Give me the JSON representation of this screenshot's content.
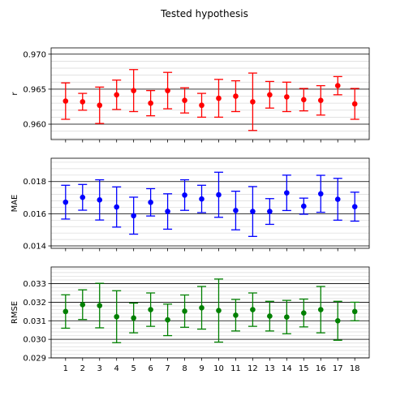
{
  "chart_data": {
    "title": "Tested hypothesis",
    "type": "scatter",
    "x_ticks": [
      1,
      2,
      3,
      4,
      5,
      6,
      7,
      8,
      9,
      10,
      11,
      12,
      13,
      14,
      15,
      16,
      17,
      18
    ],
    "shared_x": [
      1,
      2,
      3,
      4,
      5,
      6,
      7,
      8,
      9,
      10,
      11,
      12,
      13,
      14,
      15,
      16,
      17,
      18
    ],
    "xlim": [
      0.15,
      18.85
    ],
    "grid": true,
    "panels": [
      {
        "ylabel": "r",
        "color": "#ff0000",
        "ylim": [
          0.9578,
          0.9709
        ],
        "y_ticks": [
          "0.960",
          "0.965",
          "0.970"
        ],
        "y_tick_values": [
          0.96,
          0.965,
          0.97
        ],
        "minor_step": 0.001,
        "values": [
          0.9633,
          0.9632,
          0.9627,
          0.9642,
          0.9648,
          0.963,
          0.9648,
          0.9634,
          0.9627,
          0.9637,
          0.964,
          0.9632,
          0.9642,
          0.9639,
          0.9635,
          0.9634,
          0.9655,
          0.9629
        ],
        "errors": [
          0.0026,
          0.0012,
          0.0026,
          0.0021,
          0.003,
          0.0018,
          0.0026,
          0.0018,
          0.0017,
          0.0027,
          0.0022,
          0.0041,
          0.0019,
          0.0021,
          0.0016,
          0.0021,
          0.0013,
          0.0022
        ]
      },
      {
        "ylabel": "MAE",
        "color": "#0000ff",
        "ylim": [
          0.01385,
          0.01945
        ],
        "y_ticks": [
          "0.014",
          "0.016",
          "0.018"
        ],
        "y_tick_values": [
          0.014,
          0.016,
          0.018
        ],
        "minor_step": 0.0004,
        "values": [
          0.01672,
          0.01702,
          0.01686,
          0.01642,
          0.01588,
          0.01671,
          0.01614,
          0.01716,
          0.01692,
          0.01718,
          0.0162,
          0.01614,
          0.01614,
          0.0173,
          0.01647,
          0.01724,
          0.0169,
          0.01644
        ],
        "errors": [
          0.00105,
          0.0008,
          0.00125,
          0.00125,
          0.00115,
          0.00085,
          0.0011,
          0.00095,
          0.00085,
          0.0014,
          0.0012,
          0.00155,
          0.0008,
          0.0011,
          0.0005,
          0.00115,
          0.0013,
          0.0009
        ]
      },
      {
        "ylabel": "RMSE",
        "color": "#008000",
        "ylim": [
          0.029,
          0.0339
        ],
        "y_ticks": [
          "0.029",
          "0.030",
          "0.031",
          "0.032",
          "0.033"
        ],
        "y_tick_values": [
          0.029,
          0.03,
          0.031,
          0.032,
          0.033
        ],
        "minor_step": 0.0002,
        "values": [
          0.0315,
          0.03187,
          0.03182,
          0.03122,
          0.03115,
          0.0316,
          0.03105,
          0.03152,
          0.0317,
          0.03155,
          0.0313,
          0.0316,
          0.03125,
          0.0312,
          0.03142,
          0.0316,
          0.031,
          0.0315
        ],
        "errors": [
          0.0009,
          0.0008,
          0.0012,
          0.0014,
          0.0008,
          0.0009,
          0.00085,
          0.00087,
          0.00115,
          0.0017,
          0.00085,
          0.0009,
          0.0008,
          0.0009,
          0.00075,
          0.00125,
          0.00105,
          0.0005
        ]
      }
    ]
  }
}
